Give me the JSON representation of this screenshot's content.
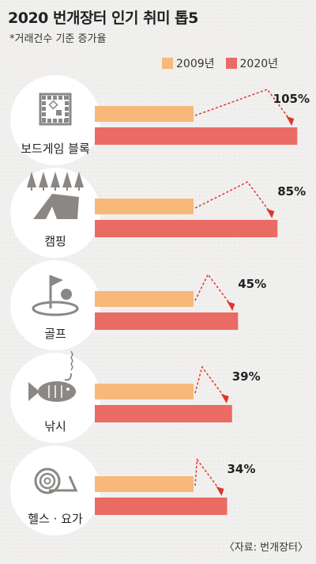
{
  "title": "2020 번개장터 인기 취미 톱5",
  "subtitle": "*거래건수 기준 증가율",
  "source": "〈자료: 번개장터〉",
  "colors": {
    "bar_2009": "#f7b87a",
    "bar_2020": "#ea6b63",
    "circle": "#ffffff",
    "icon": "#8a8784",
    "arrow": "#e0342c"
  },
  "chart_data": {
    "type": "bar",
    "categories": [
      "보드게임 블록",
      "캠핑",
      "골프",
      "낚시",
      "헬스 · 요가"
    ],
    "icons": [
      "board-game-icon",
      "camping-icon",
      "golf-icon",
      "fishing-icon",
      "yoga-mat-icon"
    ],
    "series": [
      {
        "name": "2009년",
        "values": [
          100,
          100,
          100,
          100,
          100
        ]
      },
      {
        "name": "2020년",
        "values": [
          205,
          185,
          145,
          139,
          134
        ]
      }
    ],
    "growth_labels": [
      "105%",
      "85%",
      "45%",
      "39%",
      "34%"
    ]
  }
}
